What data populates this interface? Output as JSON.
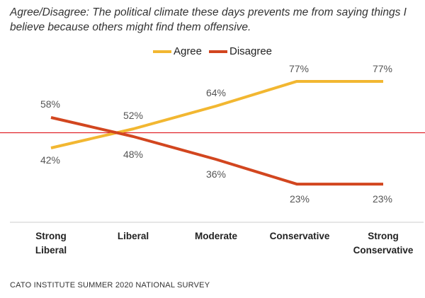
{
  "title": "Agree/Disagree: The political climate these days prevents me from saying things I believe because others might find them offensive.",
  "source": "CATO INSTITUTE SUMMER 2020 NATIONAL SURVEY",
  "colors": {
    "agree": "#f2b731",
    "disagree": "#d2461f",
    "reference": "#e0242b",
    "axis": "#cccccc",
    "label": "#555555"
  },
  "chart_data": {
    "type": "line",
    "title": "Agree/Disagree: The political climate these days prevents me from saying things I believe because others might find them offensive.",
    "categories": [
      [
        "Strong",
        "Liberal"
      ],
      [
        "Liberal"
      ],
      [
        "Moderate"
      ],
      [
        "Conservative"
      ],
      [
        "Strong",
        "Conservative"
      ]
    ],
    "series": [
      {
        "name": "Agree",
        "values": [
          42,
          52,
          64,
          77,
          77
        ],
        "labels": [
          "42%",
          "52%",
          "64%",
          "77%",
          "77%"
        ]
      },
      {
        "name": "Disagree",
        "values": [
          58,
          48,
          36,
          23,
          23
        ],
        "labels": [
          "58%",
          "48%",
          "36%",
          "23%",
          "23%"
        ]
      }
    ],
    "reference_line": 50,
    "ylim": [
      10,
      90
    ],
    "legend_position": "top-center",
    "grid": false,
    "xlabel": "",
    "ylabel": ""
  }
}
